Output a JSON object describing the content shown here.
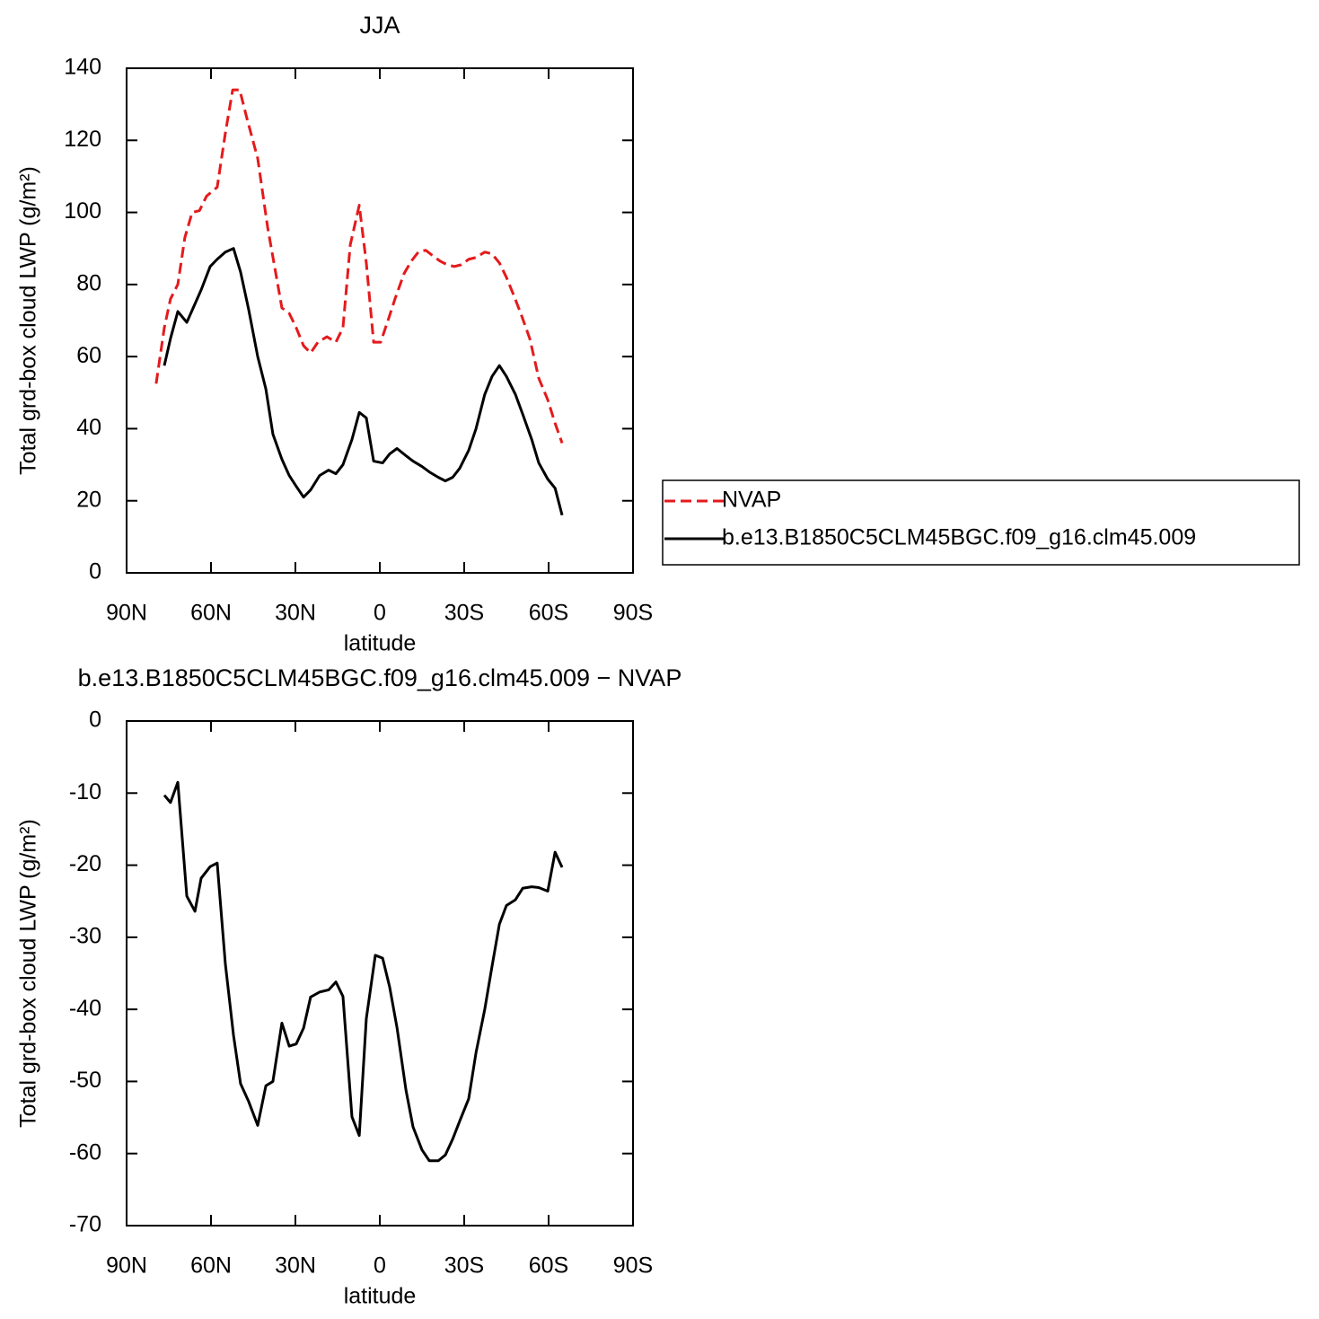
{
  "chart_data": [
    {
      "type": "line",
      "title": "JJA",
      "xlabel": "latitude",
      "ylabel": "Total grd-box cloud LWP (g/m²)",
      "xlim": [
        90,
        -90
      ],
      "xticks": [
        {
          "value": 90,
          "label": "90N"
        },
        {
          "value": 60,
          "label": "60N"
        },
        {
          "value": 30,
          "label": "30N"
        },
        0,
        {
          "value": -30,
          "label": "30S"
        },
        {
          "value": -60,
          "label": "60S"
        },
        {
          "value": -90,
          "label": "90S"
        }
      ],
      "ylim": [
        0,
        140
      ],
      "yticks": [
        0,
        20,
        40,
        60,
        80,
        100,
        120,
        140
      ],
      "legend": "right",
      "series": [
        {
          "name": "NVAP",
          "color": "#e41a1c",
          "line_style": "dashed",
          "x": [
            79.5,
            76.6,
            74.4,
            71.8,
            69.3,
            66.7,
            64.1,
            61.6,
            57.8,
            54.9,
            52.3,
            49.8,
            47.2,
            43.4,
            39.9,
            34.8,
            32.2,
            29.7,
            27.1,
            24.6,
            22.0,
            18.8,
            15.6,
            13.1,
            10.5,
            7.3,
            4.8,
            2.2,
            -0.3,
            -2.9,
            -5.4,
            -8.6,
            -11.2,
            -13.7,
            -16.3,
            -18.8,
            -21.4,
            -23.9,
            -26.5,
            -29.0,
            -31.6,
            -34.2,
            -37.3,
            -39.9,
            -42.5,
            -45.0,
            -47.6,
            -50.1,
            -53.3,
            -56.5,
            -59.7,
            -62.3,
            -64.8
          ],
          "values": [
            52.5,
            68,
            76,
            80,
            93,
            100,
            100.5,
            104.5,
            107,
            122,
            134,
            134,
            126,
            115,
            96,
            73.5,
            72,
            68,
            63,
            61,
            64,
            65.5,
            64,
            68,
            91,
            102,
            86,
            64,
            64,
            70,
            76,
            83,
            86.5,
            89,
            89.5,
            88,
            86.5,
            85.5,
            85,
            85.5,
            87,
            87.5,
            89,
            88.5,
            86,
            82,
            77,
            72,
            65,
            54,
            48,
            41.5,
            36
          ]
        },
        {
          "name": "b.e13.B1850C5CLM45BGC.f09_g16.clm45.009",
          "color": "#000000",
          "line_style": "solid",
          "x": [
            76.6,
            74.4,
            71.8,
            68.6,
            63.5,
            60.3,
            57.8,
            54.9,
            52.0,
            49.5,
            46.6,
            43.4,
            40.5,
            38.0,
            34.8,
            32.2,
            29.7,
            27.1,
            24.6,
            21.4,
            18.2,
            15.6,
            13.1,
            9.9,
            7.3,
            4.8,
            2.2,
            -1.0,
            -3.5,
            -6.1,
            -9.3,
            -11.8,
            -15.0,
            -17.6,
            -20.8,
            -23.3,
            -25.9,
            -28.4,
            -31.6,
            -34.2,
            -37.3,
            -39.9,
            -42.5,
            -45.0,
            -48.2,
            -50.8,
            -54.0,
            -56.5,
            -59.7,
            -62.3,
            -64.8
          ],
          "values": [
            57.5,
            65,
            72.5,
            69.5,
            78.5,
            85,
            87,
            89,
            90,
            83.5,
            73,
            60,
            51,
            38.5,
            31.5,
            27,
            24,
            21,
            23,
            27,
            28.5,
            27.5,
            30,
            37,
            44.5,
            43,
            31,
            30.5,
            33,
            34.5,
            32.5,
            31,
            29.5,
            28,
            26.5,
            25.5,
            26.5,
            29,
            34,
            40,
            49.5,
            54.5,
            57.5,
            54.5,
            49.5,
            44,
            37,
            30.5,
            26,
            23.5,
            16
          ]
        }
      ]
    },
    {
      "type": "line",
      "title": "b.e13.B1850C5CLM45BGC.f09_g16.clm45.009 − NVAP",
      "xlabel": "latitude",
      "ylabel": "Total grd-box cloud LWP (g/m²)",
      "xlim": [
        90,
        -90
      ],
      "xticks": [
        {
          "value": 90,
          "label": "90N"
        },
        {
          "value": 60,
          "label": "60N"
        },
        {
          "value": 30,
          "label": "30N"
        },
        0,
        {
          "value": -30,
          "label": "30S"
        },
        {
          "value": -60,
          "label": "60S"
        },
        {
          "value": -90,
          "label": "90S"
        }
      ],
      "ylim": [
        -70,
        0
      ],
      "yticks": [
        -70,
        -60,
        -50,
        -40,
        -30,
        -20,
        -10,
        0
      ],
      "series": [
        {
          "color": "#000000",
          "line_style": "solid",
          "x": [
            76.6,
            74.4,
            71.8,
            68.6,
            65.7,
            63.5,
            60.3,
            57.8,
            54.9,
            52.0,
            49.5,
            46.6,
            43.4,
            40.5,
            38.0,
            34.8,
            32.2,
            29.7,
            27.1,
            24.6,
            21.4,
            18.2,
            15.6,
            13.1,
            9.9,
            7.3,
            4.8,
            1.6,
            -1.0,
            -3.5,
            -6.1,
            -9.3,
            -11.8,
            -15.0,
            -17.6,
            -20.8,
            -23.3,
            -25.9,
            -28.4,
            -31.6,
            -34.2,
            -37.3,
            -39.9,
            -42.5,
            -45.0,
            -48.2,
            -50.8,
            -54.0,
            -56.5,
            -59.7,
            -62.3,
            -64.8
          ],
          "values": [
            -10.3,
            -11.3,
            -8.5,
            -24.3,
            -26.4,
            -21.8,
            -20.2,
            -19.7,
            -33.7,
            -43.6,
            -50.3,
            -52.8,
            -56.1,
            -50.6,
            -50.0,
            -41.9,
            -45.1,
            -44.8,
            -42.6,
            -38.3,
            -37.6,
            -37.3,
            -36.2,
            -38.2,
            -54.9,
            -57.5,
            -41.3,
            -32.5,
            -32.9,
            -36.9,
            -42.5,
            -51.2,
            -56.3,
            -59.5,
            -61.0,
            -61.0,
            -60.2,
            -58.0,
            -55.5,
            -52.4,
            -46.0,
            -40.0,
            -34.0,
            -28.2,
            -25.6,
            -24.8,
            -23.2,
            -23.0,
            -23.1,
            -23.6,
            -18.2,
            -20.3
          ]
        }
      ]
    }
  ]
}
